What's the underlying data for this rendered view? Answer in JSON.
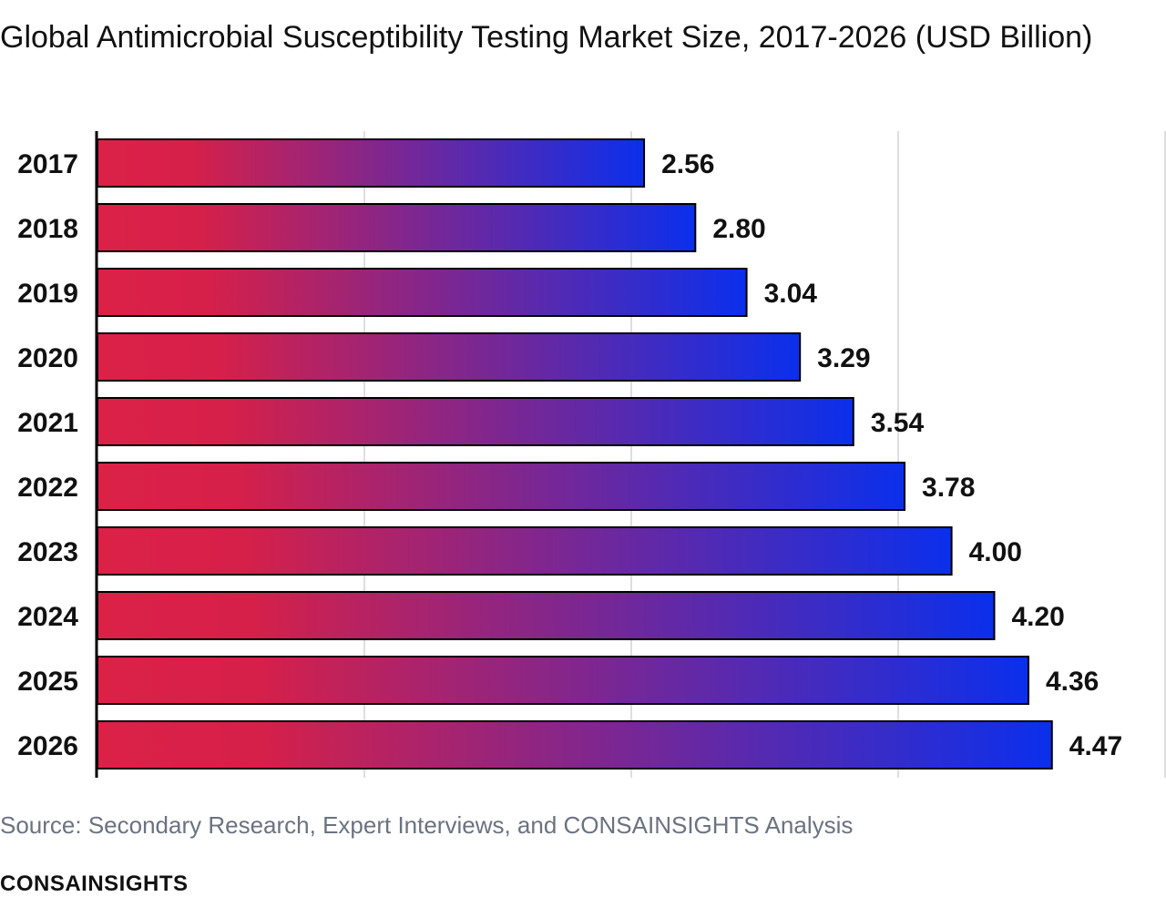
{
  "title": "Global Antimicrobial Susceptibility Testing Market Size, 2017-2026 (USD Billion)",
  "source": "Source: Secondary Research, Expert Interviews, and CONSAINSIGHTS Analysis",
  "brand": "CONSAINSIGHTS",
  "colors": {
    "bar_start": "#dc2147",
    "bar_mid": "#d62049",
    "bar_end": "#0b2fec",
    "grid": "#d4d4d4",
    "axis": "#000000",
    "text": "#111111",
    "source_text": "#6b7280"
  },
  "chart_data": {
    "type": "bar",
    "orientation": "horizontal",
    "categories": [
      "2017",
      "2018",
      "2019",
      "2020",
      "2021",
      "2022",
      "2023",
      "2024",
      "2025",
      "2026"
    ],
    "values": [
      2.56,
      2.8,
      3.04,
      3.29,
      3.54,
      3.78,
      4.0,
      4.2,
      4.36,
      4.47
    ],
    "value_labels": [
      "2.56",
      "2.80",
      "3.04",
      "3.29",
      "3.54",
      "3.78",
      "4.00",
      "4.20",
      "4.36",
      "4.47"
    ],
    "xlim": [
      0,
      5
    ],
    "x_gridlines": [
      1.25,
      2.5,
      3.75,
      5
    ],
    "grid": true,
    "legend": "none"
  }
}
